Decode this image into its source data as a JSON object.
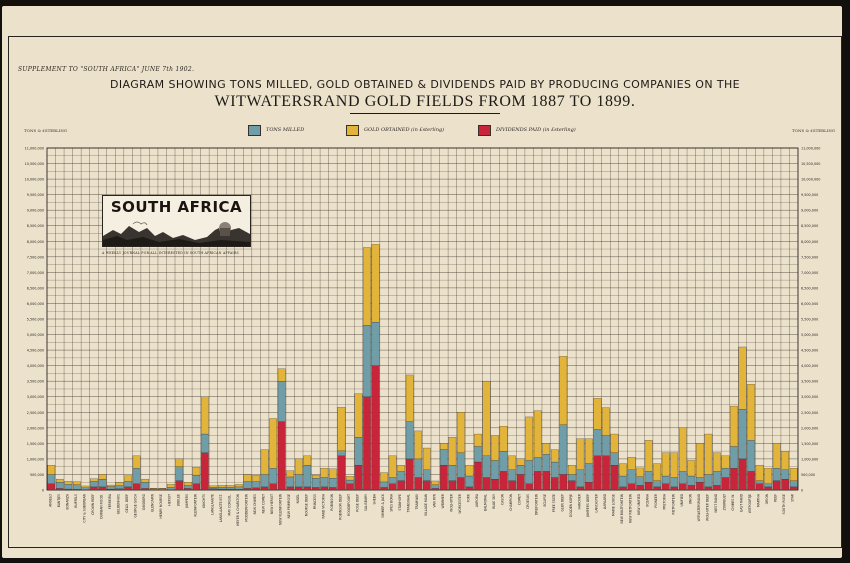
{
  "header": {
    "supplement": "SUPPLEMENT TO \"SOUTH AFRICA\" JUNE 7th 1902.",
    "title_line1": "DIAGRAM SHOWING TONS MILLED, GOLD OBTAINED & DIVIDENDS PAID BY PRODUCING COMPANIES ON THE",
    "title_line2": "WITWATERSRAND GOLD FIELDS FROM 1887 TO 1899."
  },
  "legend": {
    "tons": "TONS MILLED",
    "gold": "GOLD OBTAINED (in £sterling)",
    "dividends": "DIVIDENDS PAID (in £sterling)"
  },
  "axis_units": {
    "left": "TONS & £STERLING",
    "right": "TONS & £STERLING"
  },
  "logo": {
    "name": "SOUTH AFRICA",
    "tagline": "A WEEKLY JOURNAL FOR ALL INTERESTED IN SOUTH AFRICAN AFFAIRS"
  },
  "colors": {
    "tons": "#6f9ea8",
    "gold": "#e3b43a",
    "dividends": "#c8243a",
    "paper": "#ece2cc",
    "grid": "#3a302a"
  },
  "chart_data": {
    "type": "bar",
    "stacked": true,
    "title": "DIAGRAM SHOWING TONS MILLED, GOLD OBTAINED & DIVIDENDS PAID BY PRODUCING COMPANIES ON THE WITWATERSRAND GOLD FIELDS FROM 1887 TO 1899.",
    "ylim": [
      0,
      11000000
    ],
    "grid": true,
    "legend_position": "top",
    "y_ticks_left": [
      "11,000,000",
      "10,500,000",
      "10,000,000",
      "9,500,000",
      "9,000,000",
      "8,500,000",
      "8,000,000",
      "7,500,000",
      "7,000,000",
      "6,500,000",
      "6,000,000",
      "5,500,000",
      "5,000,000",
      "4,500,000",
      "4,000,000",
      "3,500,000",
      "3,000,000",
      "2,500,000",
      "2,000,000",
      "1,500,000",
      "1,000,000",
      "500,000",
      "0"
    ],
    "y_ticks_right": [
      "11,000,000",
      "10,500,000",
      "10,000,000",
      "9,500,000",
      "9,000,000",
      "8,500,000",
      "8,000,000",
      "7,500,000",
      "7,000,000",
      "6,500,000",
      "6,000,000",
      "5,500,000",
      "5,000,000",
      "4,500,000",
      "4,000,000",
      "3,500,000",
      "3,000,000",
      "2,500,000",
      "2,000,000",
      "1,500,000",
      "1,000,000",
      "500,000",
      "0"
    ],
    "categories": [
      "ANGELO",
      "BANTJES",
      "BONANZA",
      "BUFFELS",
      "CITY & SUBURBAN",
      "CROWN REEF",
      "DURBAN ROOD.",
      "FERREIRA",
      "GELDENHUIS",
      "GELD. DEEP",
      "GEORGE GOCH",
      "GINSBERG",
      "GLENCAIRN",
      "HENRY NOURSE",
      "HERIOT",
      "JUBILEE",
      "JUMPERS",
      "KLEINFONTEIN",
      "KNIGHTS",
      "LANGLAAGTE",
      "LANGLAAGTE EST.",
      "MAY CONSOL.",
      "MEYER & CHARLTON",
      "MODDERFONTEIN",
      "NEW CHIMES",
      "NEW COMET",
      "NEW HERIOT",
      "NEW KLEINFONTEIN",
      "NEW PRIMROSE",
      "NIGEL",
      "NOURSE DEEP",
      "PRINCESS",
      "RAND VICTORIA",
      "ROBINSON",
      "ROBINSON DEEP",
      "ROODEPOORT",
      "ROSE DEEP",
      "SALISBURY",
      "SHEBA",
      "SIMMER & JACK",
      "SPES BONA",
      "STANHOPE",
      "TRANSVAAL",
      "TRAMWAY",
      "VILLAGE MAIN",
      "VAN RYN",
      "WEMMER",
      "WOLHUTER",
      "WORCESTER",
      "YORK",
      "AURORA",
      "BALMORAL",
      "BLUE SKY",
      "CASON",
      "CHAMPION",
      "COMET",
      "CROESUS",
      "DRIEFONTEIN",
      "ECLIPSE",
      "FREE STATE",
      "GLEN DEEP",
      "GOLDEN KOPJE",
      "HANOVER",
      "JUMPERS DEEP",
      "LANCASTER",
      "LUIPAARD",
      "MARIE LOUISE",
      "NEW BULTFONTEIN",
      "NEW RIETFONTEIN",
      "NEW UNIFIED",
      "OCEANA",
      "PIONEER",
      "PRETORIA",
      "RIETFONTEIN",
      "UNIFIED",
      "UNION",
      "WITWATERSRAND",
      "WOLHUTER DEEP",
      "WEST RAND",
      "ZUURBULT",
      "CHIMES W.",
      "EAST RAND",
      "WITPOORTJE",
      "MARTHA",
      "ORION",
      "REEF",
      "SOUTH ROSE",
      "STAR"
    ],
    "series": [
      {
        "name": "TONS MILLED",
        "values": [
          300000,
          200000,
          150000,
          150000,
          60000,
          180000,
          250000,
          80000,
          100000,
          180000,
          500000,
          200000,
          30000,
          30000,
          80000,
          450000,
          100000,
          280000,
          600000,
          50000,
          60000,
          60000,
          80000,
          220000,
          200000,
          400000,
          500000,
          1300000,
          320000,
          400000,
          700000,
          300000,
          300000,
          300000,
          160000,
          120000,
          900000,
          2300000,
          1400000,
          180000,
          200000,
          300000,
          1200000,
          600000,
          350000,
          120000,
          500000,
          500000,
          800000,
          350000,
          500000,
          700000,
          600000,
          650000,
          350000,
          300000,
          750000,
          450000,
          550000,
          500000,
          1600000,
          200000,
          550000,
          600000,
          850000,
          650000,
          400000,
          350000,
          450000,
          280000,
          350000,
          200000,
          250000,
          300000,
          400000,
          300000,
          150000,
          400000,
          450000,
          300000,
          700000,
          1600000,
          1000000,
          100000,
          100000,
          400000,
          300000,
          200000
        ]
      },
      {
        "name": "GOLD OBTAINED (in £sterling)",
        "values": [
          300000,
          100000,
          100000,
          100000,
          60000,
          80000,
          150000,
          50000,
          100000,
          180000,
          400000,
          100000,
          20000,
          20000,
          100000,
          250000,
          100000,
          250000,
          1200000,
          50000,
          60000,
          60000,
          80000,
          220000,
          200000,
          800000,
          1600000,
          400000,
          200000,
          500000,
          300000,
          100000,
          300000,
          300000,
          1400000,
          120000,
          1400000,
          2500000,
          2500000,
          300000,
          700000,
          200000,
          1500000,
          900000,
          700000,
          120000,
          200000,
          900000,
          1300000,
          350000,
          400000,
          2400000,
          800000,
          800000,
          450000,
          200000,
          1400000,
          1500000,
          350000,
          400000,
          2200000,
          300000,
          1000000,
          800000,
          1000000,
          900000,
          600000,
          400000,
          400000,
          280000,
          1000000,
          550000,
          750000,
          800000,
          1400000,
          500000,
          1100000,
          1300000,
          600000,
          400000,
          1300000,
          2000000,
          1800000,
          500000,
          500000,
          800000,
          600000,
          400000
        ]
      },
      {
        "name": "DIVIDENDS PAID (in £sterling)",
        "values": [
          200000,
          50000,
          30000,
          20000,
          10000,
          100000,
          100000,
          30000,
          40000,
          100000,
          200000,
          50000,
          10000,
          10000,
          10000,
          300000,
          50000,
          200000,
          1200000,
          40000,
          30000,
          30000,
          20000,
          50000,
          70000,
          100000,
          200000,
          2200000,
          100000,
          100000,
          100000,
          80000,
          100000,
          80000,
          1100000,
          200000,
          800000,
          3000000,
          4000000,
          80000,
          200000,
          300000,
          1000000,
          400000,
          300000,
          50000,
          800000,
          300000,
          400000,
          100000,
          900000,
          400000,
          350000,
          600000,
          300000,
          500000,
          200000,
          600000,
          600000,
          400000,
          500000,
          300000,
          100000,
          250000,
          1100000,
          1100000,
          800000,
          100000,
          200000,
          150000,
          250000,
          100000,
          200000,
          100000,
          200000,
          150000,
          250000,
          100000,
          150000,
          400000,
          700000,
          1000000,
          600000,
          200000,
          100000,
          300000,
          350000,
          100000
        ]
      }
    ]
  }
}
